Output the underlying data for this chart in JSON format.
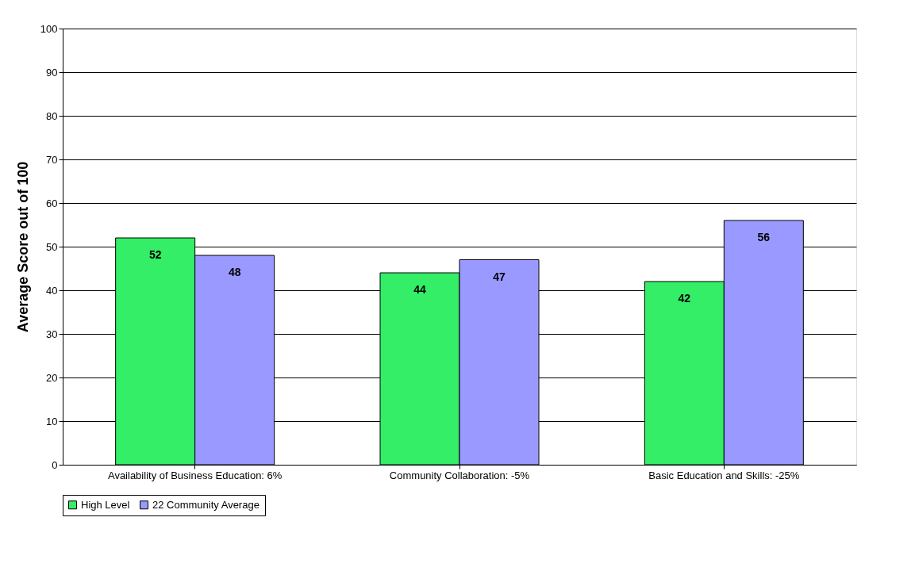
{
  "chart_data": {
    "type": "bar",
    "ylabel": "Average Score out of 100",
    "categories": [
      "Availability of Business Education: 6%",
      "Community Collaboration: -5%",
      "Basic Education and Skills: -25%"
    ],
    "series": [
      {
        "name": "High Level",
        "color": "#33ee66",
        "values": [
          52,
          44,
          42
        ]
      },
      {
        "name": "22 Community Average",
        "color": "#9999ff",
        "values": [
          48,
          47,
          56
        ]
      }
    ],
    "ylim": [
      0,
      100
    ],
    "yticks": [
      0,
      10,
      20,
      30,
      40,
      50,
      60,
      70,
      80,
      90,
      100
    ],
    "grid": "y",
    "legend": "bottom",
    "data_labels": true
  }
}
